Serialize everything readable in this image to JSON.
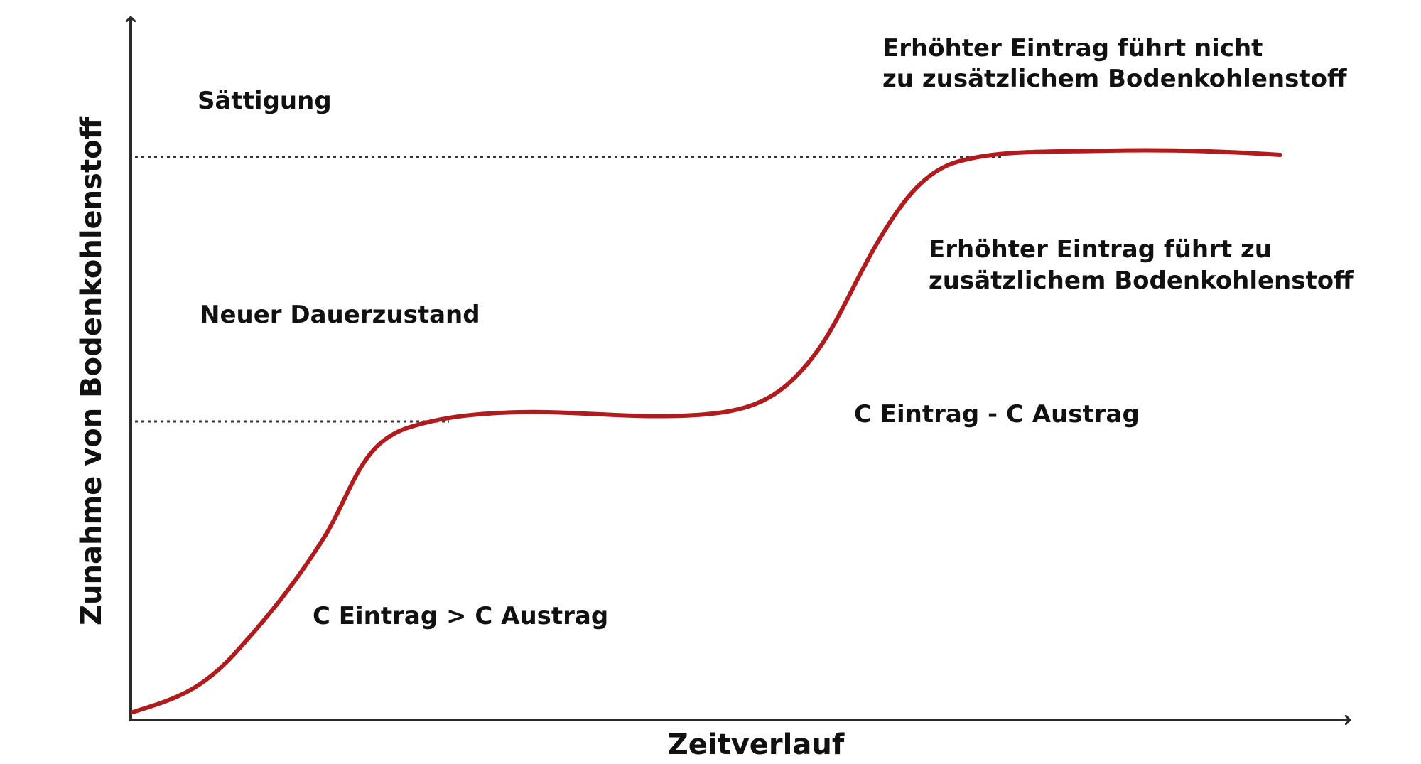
{
  "diagram": {
    "y_axis_label": "Zunahme von Bodenkohlenstoff",
    "x_axis_label": "Zeitverlauf",
    "levels": {
      "saturation": "Sättigung",
      "steady_state": "Neuer Dauerzustand"
    },
    "annotations": {
      "no_additional": {
        "line1": "Erhöhter Eintrag führt nicht",
        "line2": "zu zusätzlichem Bodenkohlenstoff"
      },
      "additional": {
        "line1": "Erhöhter Eintrag führt zu",
        "line2": "zusätzlichem Bodenkohlenstoff"
      },
      "balance": "C Eintrag - C Austrag",
      "input_exceeds": "C Eintrag > C Austrag"
    },
    "colors": {
      "curve": "#b01c1e",
      "axis": "#2a2a2a",
      "dotted_line": "#333333",
      "text": "#111111"
    }
  }
}
